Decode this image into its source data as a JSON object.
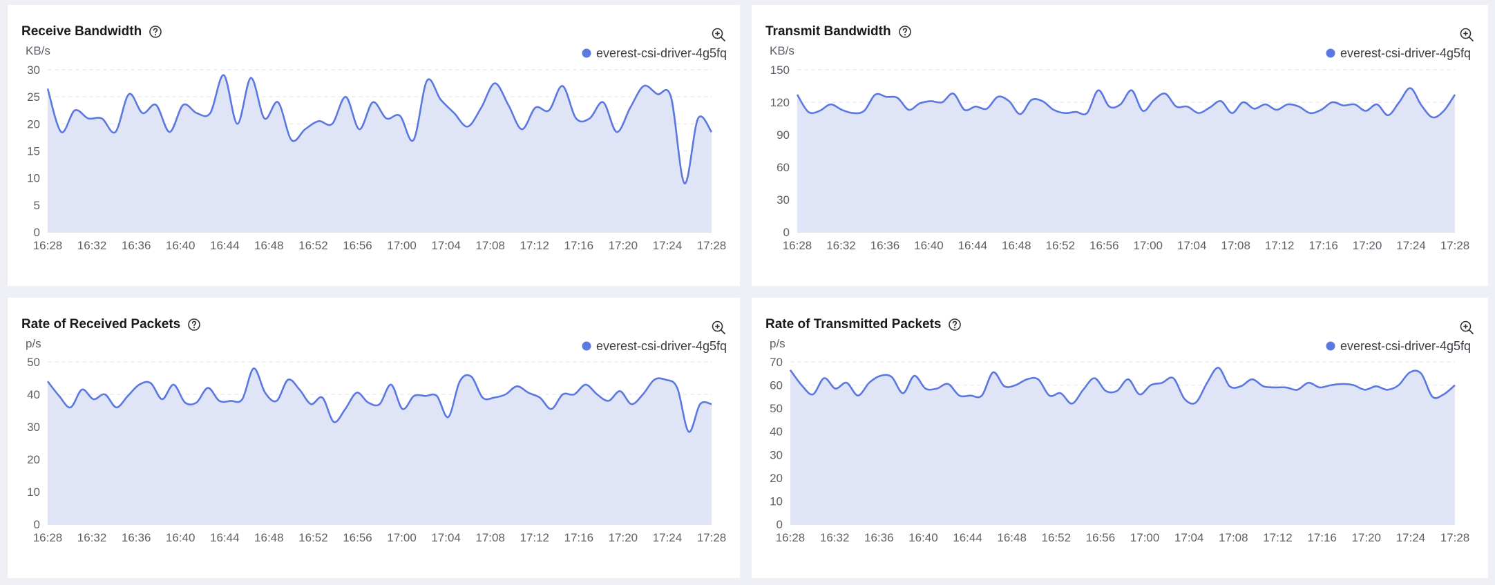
{
  "colors": {
    "series_line": "#5b78e0",
    "series_fill": "#dfe4f7",
    "grid": "#e1e3e8",
    "background": "#eff0f5"
  },
  "icons": {
    "help": "help-circle-icon",
    "zoom": "zoom-in-icon"
  },
  "panels": [
    {
      "title": "Receive Bandwidth",
      "unit": "KB/s",
      "legend": "everest-csi-driver-4g5fq"
    },
    {
      "title": "Transmit Bandwidth",
      "unit": "KB/s",
      "legend": "everest-csi-driver-4g5fq"
    },
    {
      "title": "Rate of Received Packets",
      "unit": "p/s",
      "legend": "everest-csi-driver-4g5fq"
    },
    {
      "title": "Rate of Transmitted Packets",
      "unit": "p/s",
      "legend": "everest-csi-driver-4g5fq"
    }
  ],
  "chart_data": [
    {
      "type": "area",
      "title": "Receive Bandwidth",
      "ylabel": "KB/s",
      "ylim": [
        0,
        30
      ],
      "yticks": [
        0,
        5,
        10,
        15,
        20,
        25,
        30
      ],
      "xticks": [
        "16:28",
        "16:32",
        "16:36",
        "16:40",
        "16:44",
        "16:48",
        "16:52",
        "16:56",
        "17:00",
        "17:04",
        "17:08",
        "17:12",
        "17:16",
        "17:20",
        "17:24",
        "17:28"
      ],
      "grid": true,
      "legend_position": "top-right",
      "series": [
        {
          "name": "everest-csi-driver-4g5fq",
          "values": [
            26.5,
            18.5,
            22.5,
            21,
            21,
            18.5,
            25.5,
            22,
            23.5,
            18.5,
            23.5,
            22,
            22,
            29,
            20,
            28.5,
            21,
            24,
            17,
            19,
            20.5,
            20,
            25,
            19,
            24,
            21,
            21.5,
            17,
            28,
            24.5,
            22,
            19.5,
            23,
            27.5,
            23.5,
            19,
            23,
            22.5,
            27,
            21,
            21,
            24,
            18.5,
            23,
            27,
            25.5,
            25,
            9,
            21,
            18.5
          ]
        }
      ]
    },
    {
      "type": "area",
      "title": "Transmit Bandwidth",
      "ylabel": "KB/s",
      "ylim": [
        0,
        150
      ],
      "yticks": [
        0,
        30,
        60,
        90,
        120,
        150
      ],
      "xticks": [
        "16:28",
        "16:32",
        "16:36",
        "16:40",
        "16:44",
        "16:48",
        "16:52",
        "16:56",
        "17:00",
        "17:04",
        "17:08",
        "17:12",
        "17:16",
        "17:20",
        "17:24",
        "17:28"
      ],
      "grid": true,
      "legend_position": "top-right",
      "series": [
        {
          "name": "everest-csi-driver-4g5fq",
          "values": [
            127,
            111,
            112,
            118,
            113,
            110,
            112,
            127,
            125,
            124,
            113,
            119,
            121,
            120,
            128,
            113,
            116,
            114,
            125,
            121,
            109,
            122,
            121,
            113,
            110,
            111,
            110,
            131,
            116,
            118,
            131,
            112,
            122,
            128,
            116,
            116,
            110,
            115,
            121,
            110,
            120,
            114,
            118,
            113,
            118,
            116,
            110,
            113,
            120,
            117,
            118,
            112,
            118,
            108,
            120,
            133,
            117,
            106,
            112,
            127
          ]
        }
      ]
    },
    {
      "type": "area",
      "title": "Rate of Received Packets",
      "ylabel": "p/s",
      "ylim": [
        0,
        50
      ],
      "yticks": [
        0,
        10,
        20,
        30,
        40,
        50
      ],
      "xticks": [
        "16:28",
        "16:32",
        "16:36",
        "16:40",
        "16:44",
        "16:48",
        "16:52",
        "16:56",
        "17:00",
        "17:04",
        "17:08",
        "17:12",
        "17:16",
        "17:20",
        "17:24",
        "17:28"
      ],
      "grid": true,
      "legend_position": "top-right",
      "series": [
        {
          "name": "everest-csi-driver-4g5fq",
          "values": [
            44,
            39.5,
            36,
            41.5,
            38.5,
            40,
            36,
            39.5,
            43,
            43.5,
            38.5,
            43,
            37.5,
            37.5,
            42,
            38,
            38,
            38.5,
            48,
            40.5,
            38,
            44.5,
            41.5,
            37,
            39,
            31.5,
            35.5,
            40.5,
            37.5,
            37,
            43,
            35.5,
            39.5,
            39.5,
            39.5,
            33,
            44,
            45.5,
            39,
            39,
            40,
            42.5,
            40.5,
            39,
            35.5,
            40,
            40,
            43,
            40,
            38,
            41,
            37,
            40,
            44.5,
            44.5,
            42,
            28.5,
            37,
            37
          ]
        }
      ]
    },
    {
      "type": "area",
      "title": "Rate of Transmitted Packets",
      "ylabel": "p/s",
      "ylim": [
        0,
        70
      ],
      "yticks": [
        0,
        10,
        20,
        30,
        40,
        50,
        60,
        70
      ],
      "xticks": [
        "16:28",
        "16:32",
        "16:36",
        "16:40",
        "16:44",
        "16:48",
        "16:52",
        "16:56",
        "17:00",
        "17:04",
        "17:08",
        "17:12",
        "17:16",
        "17:20",
        "17:24",
        "17:28"
      ],
      "grid": true,
      "legend_position": "top-right",
      "series": [
        {
          "name": "everest-csi-driver-4g5fq",
          "values": [
            66.5,
            60,
            56,
            63,
            58.5,
            61,
            55.5,
            61,
            64,
            63.5,
            56.5,
            64,
            58.5,
            58.5,
            60.5,
            55.5,
            55.5,
            55.5,
            65.5,
            59.5,
            60,
            62.5,
            62.5,
            55.5,
            56.5,
            52,
            58,
            63,
            57.5,
            57.5,
            62.5,
            56,
            60,
            61,
            63,
            54,
            52.5,
            61,
            67.5,
            59.5,
            59.5,
            62.5,
            59.5,
            59,
            59,
            58,
            61,
            59,
            60,
            60.5,
            60,
            58,
            59.5,
            58,
            60,
            65.5,
            65,
            55,
            56,
            60
          ]
        }
      ]
    }
  ]
}
